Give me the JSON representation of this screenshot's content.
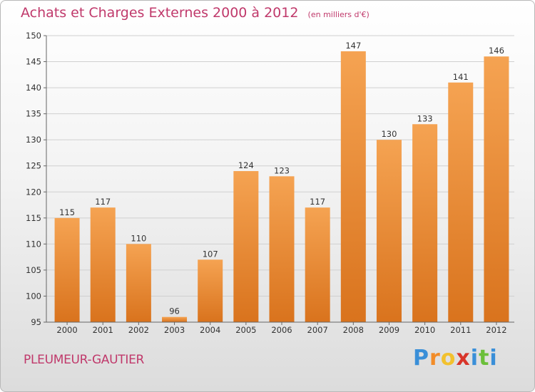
{
  "title": "Achats et Charges Externes 2000 à 2012",
  "unit": "(en milliers d'€)",
  "place": "PLEUMEUR-GAUTIER",
  "logo": {
    "letters": [
      "P",
      "r",
      "o",
      "x",
      "i",
      "t",
      "i"
    ],
    "colors": [
      "#3a8fd8",
      "#f28c28",
      "#f2c12e",
      "#d8352a",
      "#3a8fd8",
      "#6bbf3a",
      "#3a8fd8"
    ]
  },
  "colors": {
    "bar_top": "#f5a352",
    "bar_bottom": "#d9731d",
    "title": "#c0396b"
  },
  "chart_data": {
    "type": "bar",
    "categories": [
      "2000",
      "2001",
      "2002",
      "2003",
      "2004",
      "2005",
      "2006",
      "2007",
      "2008",
      "2009",
      "2010",
      "2011",
      "2012"
    ],
    "values": [
      115,
      117,
      110,
      96,
      107,
      124,
      123,
      117,
      147,
      130,
      133,
      141,
      146
    ],
    "ylim": [
      95,
      150
    ],
    "yticks": [
      95,
      100,
      105,
      110,
      115,
      120,
      125,
      130,
      135,
      140,
      145,
      150
    ],
    "grid": true
  }
}
